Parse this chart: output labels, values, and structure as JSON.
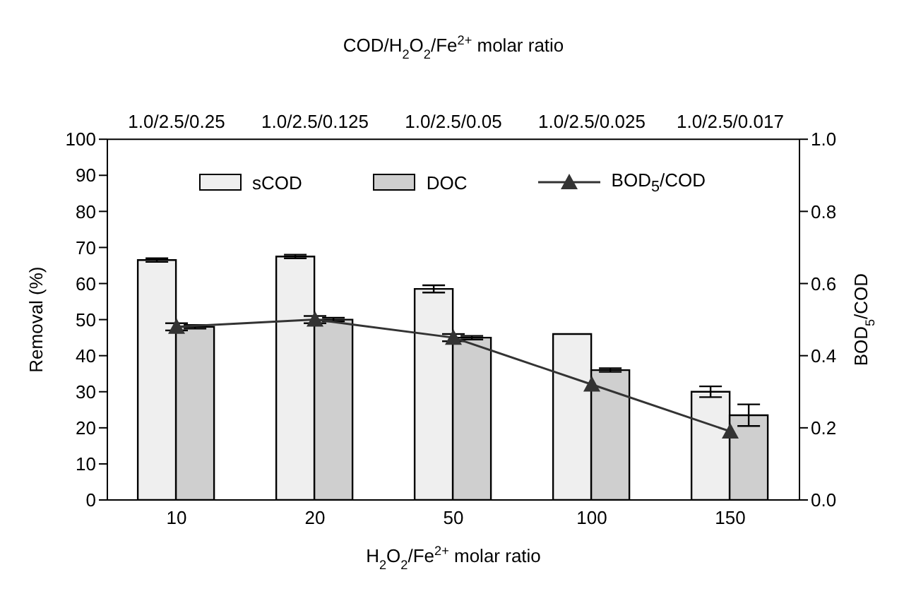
{
  "chart_data": {
    "type": "bar",
    "categories": [
      "10",
      "20",
      "50",
      "100",
      "150"
    ],
    "xlabel": "H$_{2}$O$_{2}$/Fe$^{2+}$ molar ratio",
    "ylabel": "Removal (%)",
    "y2label": "BOD$_{5}$/COD",
    "x2label": "COD/H$_{2}$O$_{2}$/Fe$^{2+}$ molar ratio",
    "annotations": [
      "1.0/2.5/0.25",
      "1.0/2.5/0.125",
      "1.0/2.5/0.05",
      "1.0/2.5/0.025",
      "1.0/2.5/0.017"
    ],
    "ylim": [
      0,
      100
    ],
    "yticks": [
      0,
      10,
      20,
      30,
      40,
      50,
      60,
      70,
      80,
      90,
      100
    ],
    "y2lim": [
      0,
      1
    ],
    "y2ticks": [
      {
        "value": 0,
        "label": "0.0"
      },
      {
        "value": 0.2,
        "label": "0.2"
      },
      {
        "value": 0.4,
        "label": "0.4"
      },
      {
        "value": 0.6,
        "label": "0.6"
      },
      {
        "value": 0.8,
        "label": "0.8"
      },
      {
        "value": 1,
        "label": "1.0"
      }
    ],
    "series": [
      {
        "name": "sCOD",
        "color": "#efefef",
        "values": [
          66.5,
          67.5,
          58.5,
          46,
          30
        ],
        "errors": [
          0.5,
          0.5,
          1,
          null,
          1.5
        ]
      },
      {
        "name": "DOC",
        "color": "#cfcfcf",
        "values": [
          48,
          50,
          45,
          36,
          23.5
        ],
        "errors": [
          0.5,
          0.5,
          0.5,
          0.5,
          3
        ]
      },
      {
        "name": "BOD$_{5}$/COD",
        "type": "line",
        "axis": "y2",
        "color": "#333333",
        "marker": "triangle",
        "values": [
          0.48,
          0.5,
          0.45,
          0.32,
          0.19
        ],
        "errors": [
          0.01,
          0.01,
          0.01,
          null,
          null
        ]
      }
    ],
    "legend": "top"
  }
}
